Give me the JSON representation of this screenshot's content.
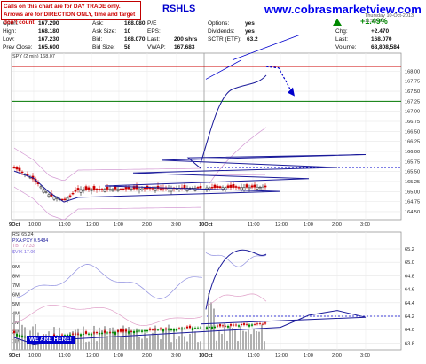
{
  "note": {
    "line1": "Calls on this chart are for DAY TRADE only.",
    "line2": "Arrows are for DIRECTION ONLY, time and target don't count."
  },
  "header": {
    "site": "www.cobrasmarketview.com",
    "ticker": "RSHLS",
    "date_text": "Thursday 10-Oct-2013 11:59 am",
    "change_pct": "+1.49%"
  },
  "quote": [
    {
      "label": "Open:",
      "value": "167.290"
    },
    {
      "label": "High:",
      "value": "168.180"
    },
    {
      "label": "Low:",
      "value": "167.230"
    },
    {
      "label": "Prev Close:",
      "value": "165.600"
    },
    {
      "label": "Ask:",
      "value": "168.080"
    },
    {
      "label": "Ask Size:",
      "value": "10"
    },
    {
      "label": "Bid:",
      "value": "168.070"
    },
    {
      "label": "Bid Size:",
      "value": "58"
    },
    {
      "label": "P/E",
      "value": ""
    },
    {
      "label": "EPS:",
      "value": ""
    },
    {
      "label": "Last:",
      "value": "200 shrs"
    },
    {
      "label": "VWAP:",
      "value": "167.683"
    },
    {
      "label": "Options:",
      "value": "yes"
    },
    {
      "label": "Dividends:",
      "value": "yes"
    },
    {
      "label": "SCTR (ETF):",
      "value": "63.2"
    },
    {
      "label": "Chg:",
      "value": "+2.470"
    },
    {
      "label": "Last:",
      "value": "168.070"
    },
    {
      "label": "Volume:",
      "value": "68,808,584"
    }
  ],
  "price_legend": "SPY (2 min) 168.07",
  "indicator_legend": {
    "rsi": "RSI 65.24",
    "pxa": "PXA:PXY 0.5484",
    "tbt": "TBT 77.33",
    "vix": "$VIX 17.06"
  },
  "we_are_here": "WE ARE HERE!",
  "colors": {
    "up": "#008800",
    "down": "#cc0000",
    "ma_blue": "#1a1a9a",
    "projection": "#0000cc",
    "bollinger": "#d49bd4",
    "green_level": "#007700",
    "red_level": "#cc0000",
    "volume": "#b0b0b0",
    "vix_line": "#9090e0",
    "tbt_line": "#e0a0c8"
  },
  "chart_data": {
    "type": "line",
    "time_labels": [
      "9Oct",
      "10:00",
      "11:00",
      "12:00",
      "1:00",
      "2:00",
      "3:00",
      "10Oct",
      "11:00",
      "12:00",
      "1:00",
      "2:00",
      "3:00"
    ],
    "price_panel": {
      "series_name": "SPY (2 min) 168.07",
      "ylim": [
        164.3,
        168.45
      ],
      "yticks": [
        164.5,
        164.75,
        165.0,
        165.25,
        165.5,
        165.75,
        166.0,
        166.25,
        166.5,
        166.75,
        167.0,
        167.25,
        167.5,
        167.75,
        168.0
      ],
      "close_path": [
        [
          "9Oct",
          165.6
        ],
        [
          "10:00",
          165.3
        ],
        [
          "10:30",
          164.9
        ],
        [
          "11:00",
          164.78
        ],
        [
          "11:30",
          165.05
        ],
        [
          "12:00",
          165.12
        ],
        [
          "12:30",
          165.3
        ],
        [
          "1:00",
          165.48
        ],
        [
          "1:30",
          165.6
        ],
        [
          "2:00",
          165.75
        ],
        [
          "2:30",
          165.95
        ],
        [
          "3:00",
          166.05
        ],
        [
          "3:30",
          165.85
        ],
        [
          "4:00",
          165.55
        ],
        [
          "10Oct",
          167.45
        ],
        [
          "10:30",
          167.8
        ],
        [
          "11:00",
          167.95
        ],
        [
          "11:30",
          167.75
        ],
        [
          "11:59",
          168.07
        ]
      ],
      "green_level": 167.25,
      "red_level": 168.12,
      "support_dashed": 165.6,
      "projection": [
        [
          "11:59",
          168.07
        ],
        [
          "12:15",
          167.95
        ],
        [
          "12:45",
          167.42
        ]
      ]
    },
    "indicator_panel": {
      "ylim": [
        63.7,
        65.45
      ],
      "yticks": [
        63.8,
        64.0,
        64.2,
        64.4,
        64.6,
        64.8,
        65.0,
        65.2
      ],
      "volume_ticks": [
        "1M",
        "2M",
        "3M",
        "4M",
        "5M",
        "6M",
        "7M",
        "8M",
        "9M"
      ],
      "pxa_path": [
        [
          "9Oct",
          63.95
        ],
        [
          "10:00",
          63.85
        ],
        [
          "11:00",
          63.92
        ],
        [
          "12:00",
          64.1
        ],
        [
          "1:00",
          64.28
        ],
        [
          "2:00",
          64.35
        ],
        [
          "3:00",
          64.25
        ],
        [
          "4:00",
          64.15
        ],
        [
          "10Oct",
          65.0
        ],
        [
          "10:30",
          65.15
        ],
        [
          "11:00",
          65.25
        ],
        [
          "11:30",
          65.05
        ],
        [
          "11:59",
          65.2
        ]
      ],
      "dashed_level": 64.2
    }
  }
}
